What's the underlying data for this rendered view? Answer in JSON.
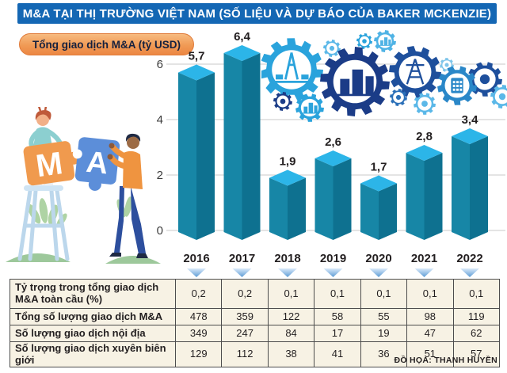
{
  "header": {
    "title": "M&A TẠI THỊ TRƯỜNG VIỆT NAM (SỐ LIỆU VÀ DỰ BÁO CỦA BAKER MCKENZIE)"
  },
  "badge": {
    "label": "Tổng giao dịch M&A (tỷ USD)"
  },
  "chart_data": {
    "type": "bar",
    "title": "Tổng giao dịch M&A (tỷ USD)",
    "categories": [
      "2016",
      "2017",
      "2018",
      "2019",
      "2020",
      "2021",
      "2022"
    ],
    "values": [
      5.7,
      6.4,
      1.9,
      2.6,
      1.7,
      2.8,
      3.4
    ],
    "value_labels": [
      "5,7",
      "6,4",
      "1,9",
      "2,6",
      "1,7",
      "2,8",
      "3,4"
    ],
    "xlabel": "",
    "ylabel": "",
    "ylim": [
      0,
      6
    ],
    "yticks": [
      0,
      2,
      4,
      6
    ],
    "grid": true,
    "legend": "none",
    "bar_color_top": "#2cb5e8",
    "bar_color_left": "#1786a6",
    "bar_color_right": "#0e7190"
  },
  "table": {
    "columns": [
      "2016",
      "2017",
      "2018",
      "2019",
      "2020",
      "2021",
      "2022"
    ],
    "rows": [
      {
        "label": "Tỷ trọng trong tổng giao dịch M&A toàn cầu (%)",
        "values": [
          "0,2",
          "0,2",
          "0,1",
          "0,1",
          "0,1",
          "0,1",
          "0,1"
        ]
      },
      {
        "label": "Tổng số lượng giao dịch M&A",
        "values": [
          "478",
          "359",
          "122",
          "58",
          "55",
          "98",
          "119"
        ]
      },
      {
        "label": "Số lượng giao dịch nội địa",
        "values": [
          "349",
          "247",
          "84",
          "17",
          "19",
          "47",
          "62"
        ]
      },
      {
        "label": "Số lượng giao dịch xuyên biên giới",
        "values": [
          "129",
          "112",
          "38",
          "41",
          "36",
          "51",
          "57"
        ]
      }
    ]
  },
  "credit": {
    "text": "ĐỒ HỌA: THANH HUYỀN"
  },
  "icons": {
    "gears": "industry-gears-illustration",
    "people": "ma-puzzle-people-illustration"
  },
  "colors": {
    "title_bar": "#1467b4",
    "badge_orange": "#f09a55",
    "grid_line": "#c9c9c9",
    "table_bg": "#f7f2e4",
    "table_border": "#4d4d4d",
    "text": "#231f20",
    "pointer_triangle": "#5b9bd5",
    "gear_light_blue": "#2aa3dc",
    "gear_mid_blue": "#1e4f9c",
    "gear_navy": "#1b3c87"
  }
}
